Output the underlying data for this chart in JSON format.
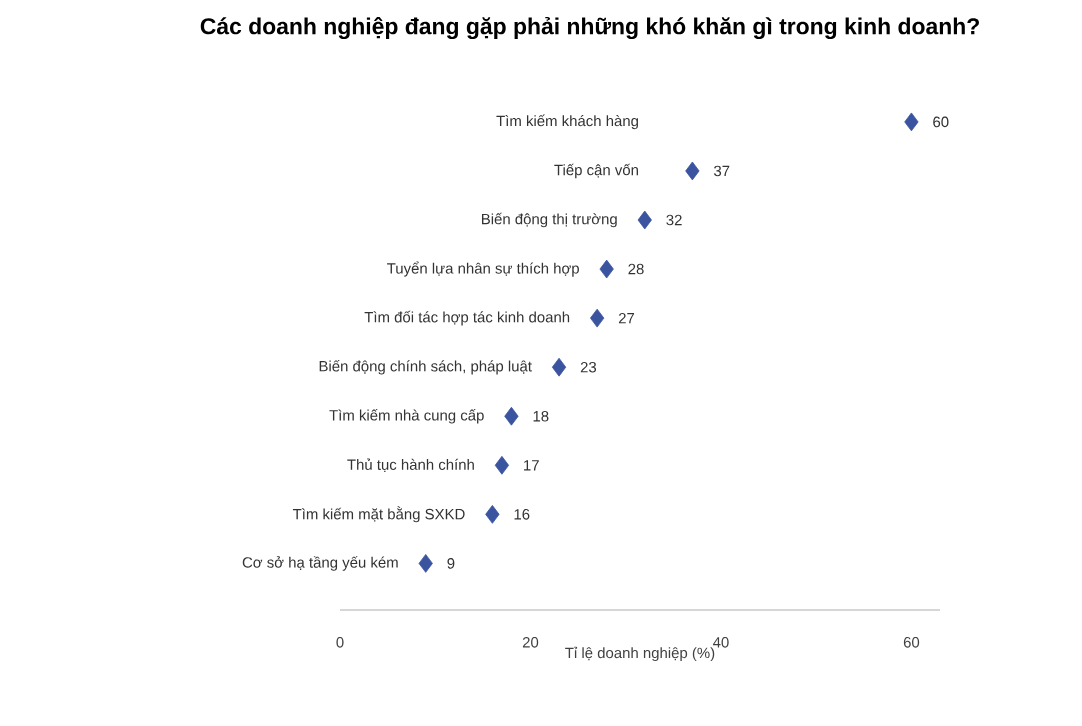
{
  "chart_data": {
    "type": "scatter",
    "orientation": "horizontal",
    "title": "Các doanh nghiệp đang gặp phải những khó khăn gì trong kinh doanh?",
    "xlabel": "Tỉ lệ doanh nghiệp (%)",
    "categories": [
      "Tìm kiếm khách hàng",
      "Tiếp cận vốn",
      "Biến động thị trường",
      "Tuyển lựa nhân sự thích hợp",
      "Tìm đối tác hợp tác kinh doanh",
      "Biến động chính sách, pháp luật",
      "Tìm kiếm nhà cung cấp",
      "Thủ tục hành chính",
      "Tìm kiếm mặt bằng SXKD",
      "Cơ sở hạ tầng yếu kém"
    ],
    "values": [
      60,
      37,
      32,
      28,
      27,
      23,
      18,
      17,
      16,
      9
    ],
    "color": "#3b54a0",
    "marker": "diamond",
    "data_labels": true,
    "xlim": [
      0,
      63
    ],
    "xticks": [
      0,
      20,
      40,
      60
    ],
    "grid": false
  }
}
